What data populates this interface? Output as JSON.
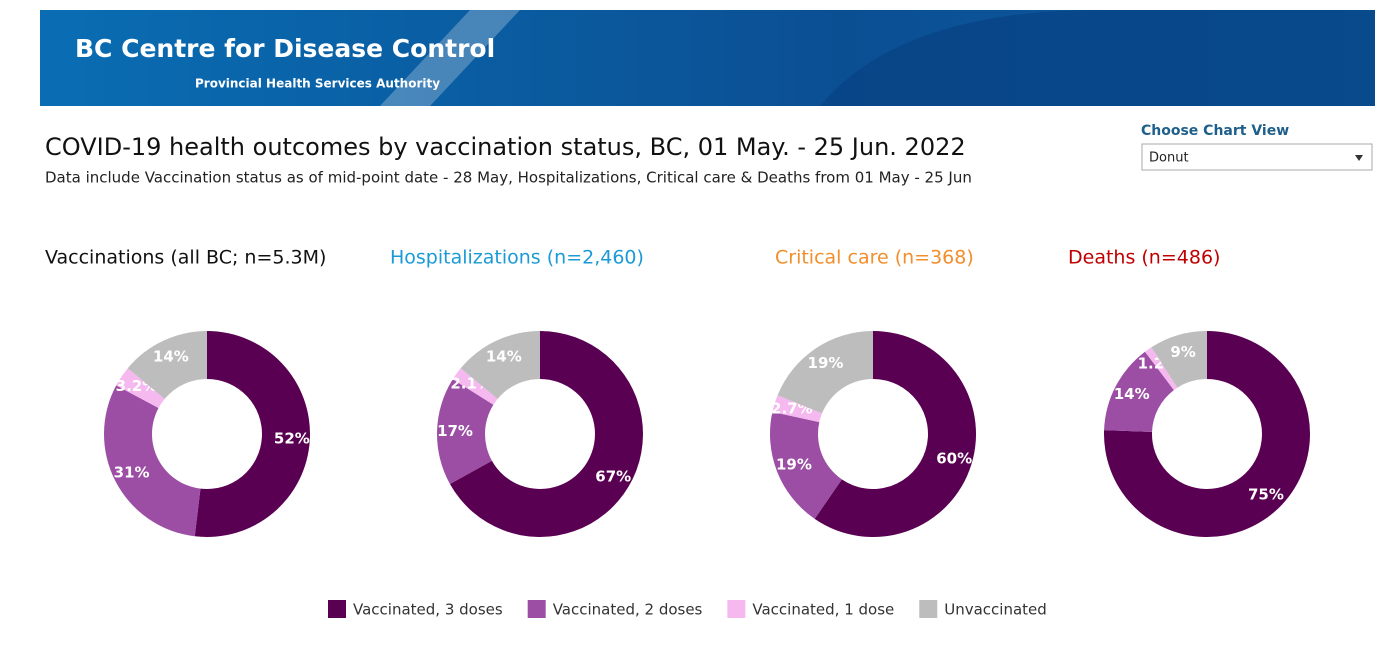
{
  "header": {
    "org": "BC Centre for Disease Control",
    "sub": "Provincial Health Services Authority"
  },
  "title": "COVID-19 health outcomes by vaccination status, BC,  01 May. - 25 Jun. 2022",
  "subtitle": "Data include Vaccination status as of mid-point date - 28 May, Hospitalizations, Critical care & Deaths from 01 May - 25 Jun",
  "control": {
    "label": "Choose Chart View",
    "value": "Donut"
  },
  "legend": {
    "categories": [
      "Vaccinated, 3 doses",
      "Vaccinated, 2 doses",
      "Vaccinated, 1 dose",
      "Unvaccinated"
    ],
    "colors": [
      "#5a0052",
      "#9b4ea3",
      "#f5b8ef",
      "#bdbdbd"
    ]
  },
  "chart_data": [
    {
      "type": "donut",
      "title": "Vaccinations (all BC; n=5.3M)",
      "title_color": "#111111",
      "values": [
        52,
        31,
        3.2,
        14
      ],
      "value_labels": [
        "52%",
        "31%",
        "3.2%",
        "14%"
      ]
    },
    {
      "type": "donut",
      "title": "Hospitalizations (n=2,460)",
      "title_color": "#1a9ad6",
      "values": [
        67,
        17,
        2.1,
        14
      ],
      "value_labels": [
        "67%",
        "17%",
        "2.1%",
        "14%"
      ]
    },
    {
      "type": "donut",
      "title": "Critical care (n=368)",
      "title_color": "#f28e2b",
      "values": [
        60,
        19,
        2.7,
        19
      ],
      "value_labels": [
        "60%",
        "19%",
        "2.7%",
        "19%"
      ]
    },
    {
      "type": "donut",
      "title": "Deaths (n=486)",
      "title_color": "#c00000",
      "values": [
        75,
        14,
        1.2,
        9
      ],
      "value_labels": [
        "75%",
        "14%",
        "1.2%",
        "9%"
      ]
    }
  ]
}
